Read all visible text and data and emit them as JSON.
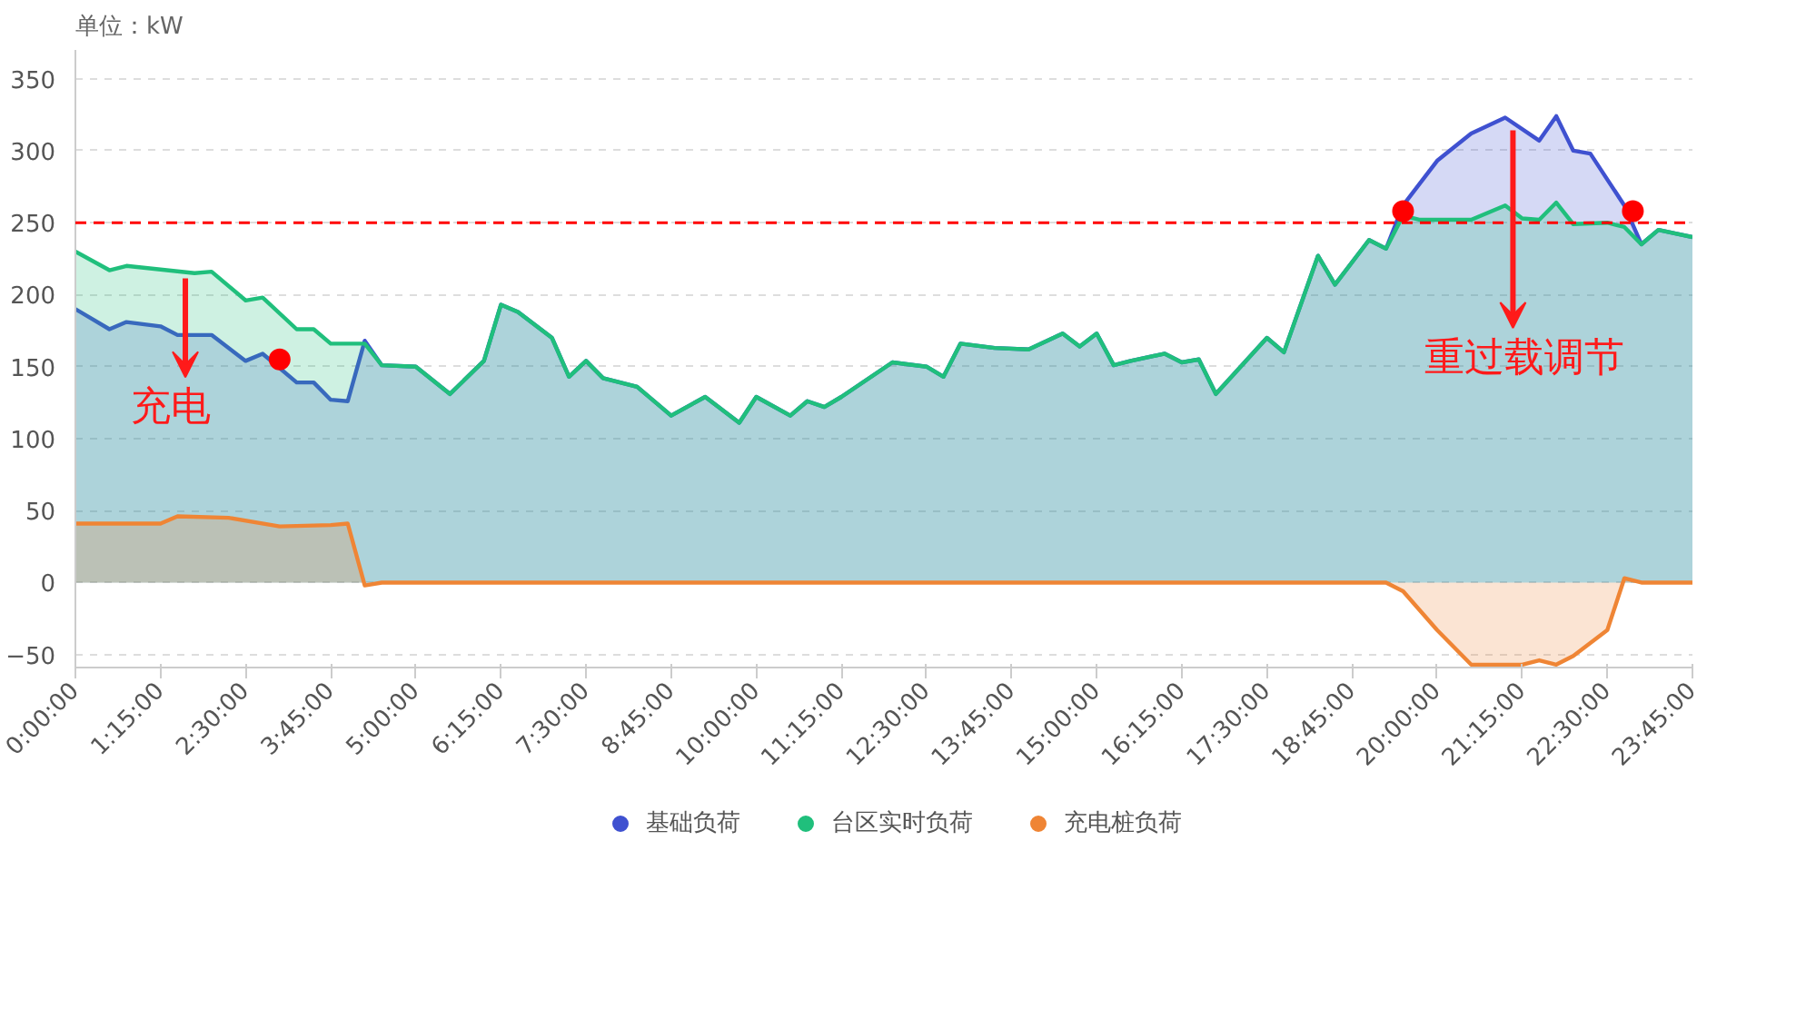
{
  "chart_data": {
    "type": "area",
    "ylabel": "单位：kW",
    "xlim": [
      0,
      23.75
    ],
    "ylim": [
      -59,
      370
    ],
    "yticks": [
      -50,
      0,
      50,
      100,
      150,
      200,
      250,
      300,
      350
    ],
    "xticks": [
      {
        "value": 0,
        "label": "0:00:00"
      },
      {
        "value": 1.25,
        "label": "1:15:00"
      },
      {
        "value": 2.5,
        "label": "2:30:00"
      },
      {
        "value": 3.75,
        "label": "3:45:00"
      },
      {
        "value": 5,
        "label": "5:00:00"
      },
      {
        "value": 6.25,
        "label": "6:15:00"
      },
      {
        "value": 7.5,
        "label": "7:30:00"
      },
      {
        "value": 8.75,
        "label": "8:45:00"
      },
      {
        "value": 10,
        "label": "10:00:00"
      },
      {
        "value": 11.25,
        "label": "11:15:00"
      },
      {
        "value": 12.5,
        "label": "12:30:00"
      },
      {
        "value": 13.75,
        "label": "13:45:00"
      },
      {
        "value": 15,
        "label": "15:00:00"
      },
      {
        "value": 16.25,
        "label": "16:15:00"
      },
      {
        "value": 17.5,
        "label": "17:30:00"
      },
      {
        "value": 18.75,
        "label": "18:45:00"
      },
      {
        "value": 20,
        "label": "20:00:00"
      },
      {
        "value": 21.25,
        "label": "21:15:00"
      },
      {
        "value": 22.5,
        "label": "22:30:00"
      },
      {
        "value": 23.75,
        "label": "23:45:00"
      }
    ],
    "series": [
      {
        "name": "基础负荷",
        "color": "#3f51d0",
        "x": [
          0,
          0.5,
          0.75,
          1.25,
          1.5,
          2,
          2.5,
          2.75,
          3.25,
          3.5,
          3.75,
          4,
          4.25,
          4.5,
          5,
          5.5,
          6,
          6.25,
          6.5,
          7,
          7.25,
          7.5,
          7.75,
          8.25,
          8.75,
          9.25,
          9.75,
          10,
          10.5,
          10.75,
          11,
          11.25,
          12,
          12.5,
          12.75,
          13,
          13.5,
          14,
          14.5,
          14.75,
          15,
          15.25,
          15.5,
          16,
          16.25,
          16.5,
          16.75,
          17.5,
          17.75,
          18.25,
          18.5,
          19,
          19.25,
          19.5,
          20,
          20.5,
          21,
          21.5,
          21.75,
          22,
          22.25,
          22.75,
          23,
          23.25,
          23.75
        ],
        "values": [
          190,
          176,
          181,
          178,
          172,
          172,
          154,
          159,
          139,
          139,
          127,
          126,
          168,
          151,
          150,
          131,
          154,
          193,
          188,
          170,
          143,
          154,
          142,
          136,
          116,
          129,
          111,
          129,
          116,
          126,
          122,
          129,
          153,
          150,
          143,
          166,
          163,
          162,
          173,
          164,
          173,
          151,
          154,
          159,
          153,
          155,
          131,
          170,
          160,
          227,
          207,
          238,
          232,
          262,
          293,
          312,
          323,
          307,
          324,
          300,
          298,
          262,
          235,
          245,
          240
        ]
      },
      {
        "name": "台区实时负荷",
        "color": "#20bf7c",
        "x": [
          0,
          0.5,
          0.75,
          1.75,
          2,
          2.5,
          2.75,
          3.25,
          3.5,
          3.75,
          4.25,
          4.5,
          5,
          5.5,
          6,
          6.25,
          6.5,
          7,
          7.25,
          7.5,
          7.75,
          8.25,
          8.75,
          9.25,
          9.75,
          10,
          10.5,
          10.75,
          11,
          11.25,
          12,
          12.5,
          12.75,
          13,
          13.5,
          14,
          14.5,
          14.75,
          15,
          15.25,
          15.5,
          16,
          16.25,
          16.5,
          16.75,
          17.5,
          17.75,
          18.25,
          18.5,
          19,
          19.25,
          19.5,
          19.75,
          20.5,
          21,
          21.25,
          21.5,
          21.75,
          22,
          22.5,
          22.75,
          23,
          23.25,
          23.75
        ],
        "values": [
          230,
          217,
          220,
          215,
          216,
          196,
          198,
          176,
          176,
          166,
          166,
          151,
          150,
          131,
          154,
          193,
          188,
          170,
          143,
          154,
          142,
          136,
          116,
          129,
          111,
          129,
          116,
          126,
          122,
          129,
          153,
          150,
          143,
          166,
          163,
          162,
          173,
          164,
          173,
          151,
          154,
          159,
          153,
          155,
          131,
          170,
          160,
          227,
          207,
          238,
          232,
          255,
          252,
          252,
          262,
          253,
          252,
          264,
          249,
          250,
          247,
          235,
          245,
          240
        ]
      },
      {
        "name": "充电桩负荷",
        "color": "#ef8535",
        "x": [
          0,
          1.25,
          1.5,
          2.25,
          3,
          3.75,
          4,
          4.25,
          4.5,
          19.25,
          19.5,
          20,
          20.25,
          20.5,
          21.25,
          21.5,
          21.75,
          22,
          22.5,
          22.75,
          23,
          23.75
        ],
        "values": [
          41,
          41,
          46,
          45,
          39,
          40,
          41,
          -2,
          0,
          0,
          -6,
          -33,
          -45,
          -57,
          -57,
          -54,
          -57,
          -51,
          -33,
          3,
          0,
          0
        ]
      },
      {
        "type": "scatter",
        "color": "#ff0000",
        "marker": "circle",
        "x": [
          3,
          19.5,
          22.875
        ],
        "values": [
          155,
          258,
          258
        ]
      }
    ],
    "ref_lines": [
      {
        "axis": "y",
        "value": 250,
        "color": "#ff0000",
        "line_style": "dashed"
      }
    ],
    "annotations": [
      "充电",
      "重过载调节"
    ],
    "grid": "y",
    "legend": "bottom"
  }
}
